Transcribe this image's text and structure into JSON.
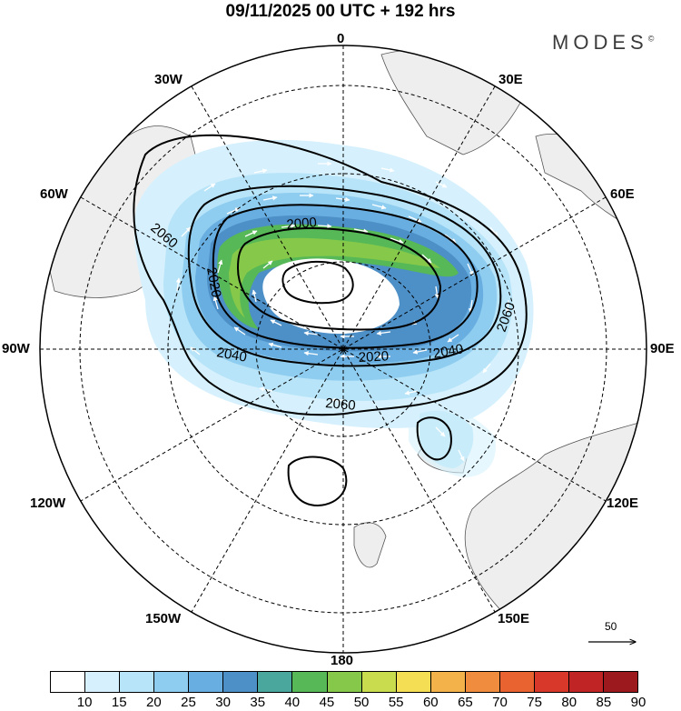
{
  "title": "09/11/2025  00 UTC  + 192 hrs",
  "brand": {
    "name": "MODES",
    "mark": "©"
  },
  "longitude_labels": {
    "n0": "0",
    "n30e": "30E",
    "n60e": "60E",
    "n90e": "90E",
    "n120e": "120E",
    "n150e": "150E",
    "n180": "180",
    "n150w": "150W",
    "n120w": "120W",
    "n90w": "90W",
    "n60w": "60W",
    "n30w": "30W"
  },
  "contour_labels": [
    "2000",
    "2020",
    "2020",
    "2040",
    "2040",
    "2060",
    "2060",
    "2060"
  ],
  "vector_reference": {
    "value": "50",
    "icon": "arrow-right-icon"
  },
  "legend": {
    "ticks": [
      "10",
      "15",
      "20",
      "25",
      "30",
      "35",
      "40",
      "45",
      "50",
      "55",
      "60",
      "65",
      "70",
      "75",
      "80",
      "85",
      "90"
    ],
    "colors": [
      "#ffffff",
      "#d6f1fd",
      "#b7e4f8",
      "#8fcdf0",
      "#69aee0",
      "#4d8fc7",
      "#4aa79e",
      "#56b856",
      "#86c94a",
      "#c9dc4d",
      "#f4df54",
      "#f4b24a",
      "#f08c3d",
      "#e8632f",
      "#d8382a",
      "#c02425",
      "#9c1a1e"
    ]
  }
}
